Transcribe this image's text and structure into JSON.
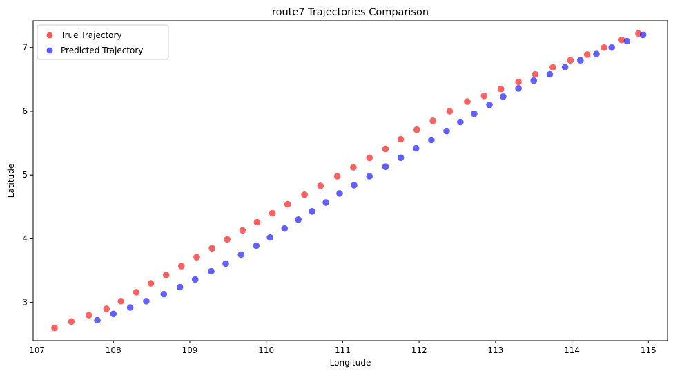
{
  "chart_data": {
    "type": "scatter",
    "title": "route7 Trajectories Comparison",
    "xlabel": "Longitude",
    "ylabel": "Latitude",
    "xlim": [
      106.95,
      115.25
    ],
    "ylim": [
      2.4,
      7.42
    ],
    "xticks": [
      107,
      108,
      109,
      110,
      111,
      112,
      113,
      114,
      115
    ],
    "yticks": [
      3,
      4,
      5,
      6,
      7
    ],
    "grid": false,
    "legend_position": "top-left",
    "series": [
      {
        "name": "True Trajectory",
        "color": "#ff0000",
        "points": [
          [
            107.23,
            2.6
          ],
          [
            107.45,
            2.7
          ],
          [
            107.68,
            2.8
          ],
          [
            107.91,
            2.9
          ],
          [
            108.1,
            3.02
          ],
          [
            108.3,
            3.16
          ],
          [
            108.49,
            3.3
          ],
          [
            108.69,
            3.43
          ],
          [
            108.89,
            3.57
          ],
          [
            109.09,
            3.71
          ],
          [
            109.29,
            3.85
          ],
          [
            109.49,
            3.99
          ],
          [
            109.69,
            4.13
          ],
          [
            109.88,
            4.26
          ],
          [
            110.08,
            4.4
          ],
          [
            110.28,
            4.54
          ],
          [
            110.5,
            4.69
          ],
          [
            110.71,
            4.83
          ],
          [
            110.93,
            4.98
          ],
          [
            111.14,
            5.12
          ],
          [
            111.35,
            5.27
          ],
          [
            111.56,
            5.41
          ],
          [
            111.76,
            5.56
          ],
          [
            111.97,
            5.71
          ],
          [
            112.18,
            5.85
          ],
          [
            112.4,
            6.0
          ],
          [
            112.63,
            6.15
          ],
          [
            112.85,
            6.24
          ],
          [
            113.07,
            6.35
          ],
          [
            113.3,
            6.46
          ],
          [
            113.52,
            6.58
          ],
          [
            113.75,
            6.69
          ],
          [
            113.98,
            6.8
          ],
          [
            114.2,
            6.89
          ],
          [
            114.42,
            7.0
          ],
          [
            114.65,
            7.12
          ],
          [
            114.87,
            7.22
          ]
        ]
      },
      {
        "name": "Predicted Trajectory",
        "color": "#0000ff",
        "points": [
          [
            107.79,
            2.72
          ],
          [
            108.0,
            2.82
          ],
          [
            108.22,
            2.92
          ],
          [
            108.43,
            3.02
          ],
          [
            108.66,
            3.13
          ],
          [
            108.87,
            3.24
          ],
          [
            109.07,
            3.36
          ],
          [
            109.28,
            3.49
          ],
          [
            109.47,
            3.61
          ],
          [
            109.67,
            3.75
          ],
          [
            109.87,
            3.89
          ],
          [
            110.05,
            4.02
          ],
          [
            110.24,
            4.16
          ],
          [
            110.42,
            4.3
          ],
          [
            110.6,
            4.43
          ],
          [
            110.78,
            4.57
          ],
          [
            110.96,
            4.71
          ],
          [
            111.15,
            4.84
          ],
          [
            111.35,
            4.98
          ],
          [
            111.56,
            5.13
          ],
          [
            111.76,
            5.27
          ],
          [
            111.96,
            5.42
          ],
          [
            112.16,
            5.55
          ],
          [
            112.36,
            5.69
          ],
          [
            112.54,
            5.83
          ],
          [
            112.72,
            5.96
          ],
          [
            112.92,
            6.1
          ],
          [
            113.1,
            6.23
          ],
          [
            113.3,
            6.36
          ],
          [
            113.5,
            6.48
          ],
          [
            113.71,
            6.58
          ],
          [
            113.91,
            6.69
          ],
          [
            114.11,
            6.8
          ],
          [
            114.32,
            6.9
          ],
          [
            114.52,
            7.0
          ],
          [
            114.72,
            7.1
          ],
          [
            114.93,
            7.2
          ]
        ]
      }
    ]
  }
}
